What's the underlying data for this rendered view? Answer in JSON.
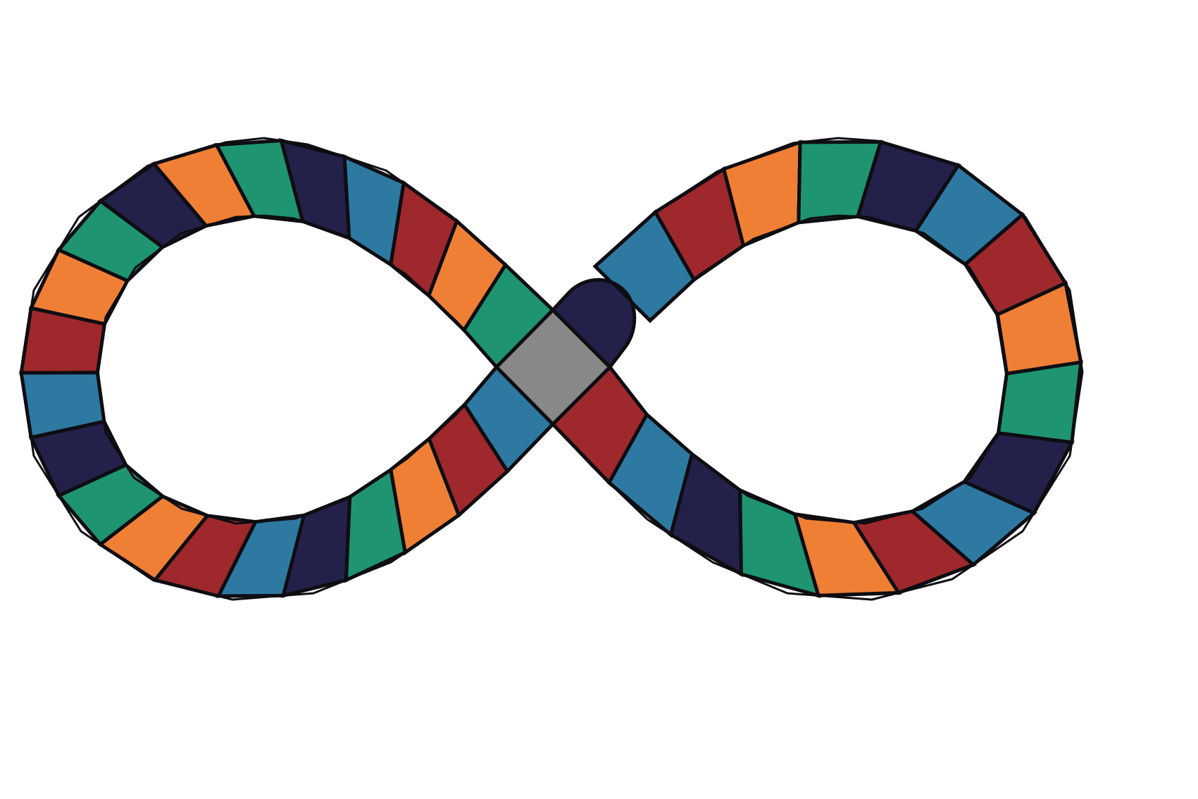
{
  "board": {
    "shape": "figure-eight track",
    "background": "#ffffff",
    "outline_color": "#0d0d12",
    "palette": {
      "teal": "#1e9470",
      "orange": "#ef7f35",
      "red": "#9e282b",
      "blue": "#2d79a2",
      "navy": "#232149",
      "gray": "#888888"
    },
    "center_space": {
      "name": "crossing-space",
      "color": "gray"
    },
    "start_tab": {
      "name": "start-tab",
      "color": "navy"
    },
    "left_loop": {
      "spaces": [
        "teal",
        "orange",
        "red",
        "blue",
        "navy",
        "teal",
        "orange",
        "navy",
        "teal",
        "orange",
        "red",
        "blue",
        "navy",
        "teal",
        "orange",
        "red",
        "blue",
        "navy",
        "teal",
        "orange",
        "red",
        "blue"
      ]
    },
    "right_loop": {
      "spaces": [
        "blue",
        "red",
        "orange",
        "teal",
        "navy",
        "blue",
        "red",
        "orange",
        "teal",
        "navy",
        "blue",
        "red",
        "orange",
        "teal",
        "navy",
        "blue",
        "red"
      ]
    }
  }
}
